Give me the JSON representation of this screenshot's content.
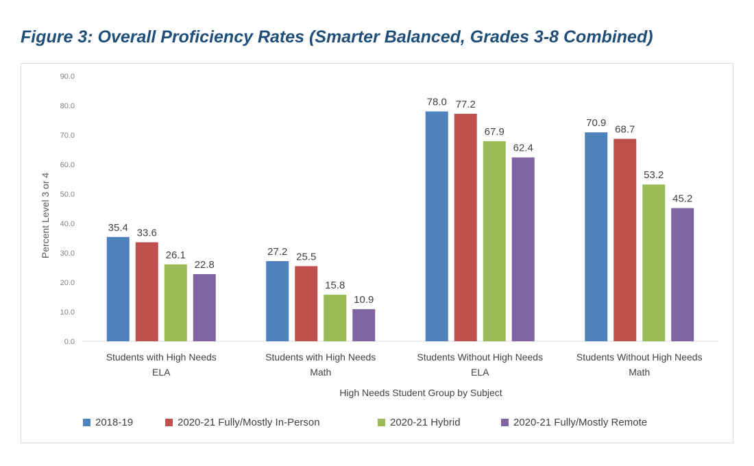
{
  "title": "Figure 3: Overall Proficiency Rates (Smarter Balanced, Grades 3-8 Combined)",
  "chart_data": {
    "type": "bar",
    "xlabel": "High Needs Student Group by Subject",
    "ylabel": "Percent Level 3 or 4",
    "ylim": [
      0,
      90
    ],
    "y_ticks": [
      "0.0",
      "10.0",
      "20.0",
      "30.0",
      "40.0",
      "50.0",
      "60.0",
      "70.0",
      "80.0",
      "90.0"
    ],
    "grid": false,
    "legend_position": "bottom",
    "categories": [
      [
        "Students with High Needs",
        "ELA"
      ],
      [
        "Students with High Needs",
        "Math"
      ],
      [
        "Students Without High Needs",
        "ELA"
      ],
      [
        "Students Without High Needs",
        "Math"
      ]
    ],
    "series": [
      {
        "name": "2018-19",
        "color": "#4f81bd",
        "values": [
          35.4,
          27.2,
          78.0,
          70.9
        ],
        "labels": [
          "35.4",
          "27.2",
          "78.0",
          "70.9"
        ]
      },
      {
        "name": "2020-21 Fully/Mostly In-Person",
        "color": "#c0504d",
        "values": [
          33.6,
          25.5,
          77.2,
          68.7
        ],
        "labels": [
          "33.6",
          "25.5",
          "77.2",
          "68.7"
        ]
      },
      {
        "name": "2020-21 Hybrid",
        "color": "#9bbb59",
        "values": [
          26.1,
          15.8,
          67.9,
          53.2
        ],
        "labels": [
          "26.1",
          "15.8",
          "67.9",
          "53.2"
        ]
      },
      {
        "name": "2020-21 Fully/Mostly Remote",
        "color": "#8064a2",
        "values": [
          22.8,
          10.9,
          62.4,
          45.2
        ],
        "labels": [
          "22.8",
          "10.9",
          "62.4",
          "45.2"
        ]
      }
    ]
  }
}
